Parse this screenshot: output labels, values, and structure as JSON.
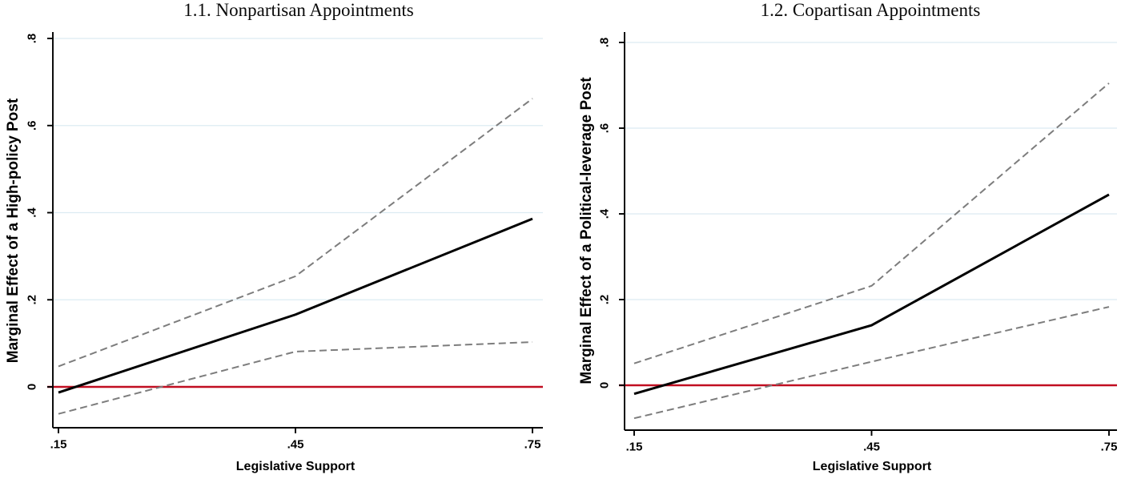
{
  "figure": {
    "description": "Two-panel marginal effects plot with 95% confidence intervals and a zero reference line"
  },
  "styles": {
    "background": "#ffffff",
    "gridline_color": "#dcebf2",
    "axis_color": "#000000",
    "ci_dash_color": "#7d7d7d",
    "zero_line_color": "#c10e21",
    "effect_line_color": "#000000"
  },
  "chart_data": [
    {
      "type": "line",
      "title": "1.1. Nonpartisan Appointments",
      "xlabel": "Legislative Support",
      "ylabel": "Marginal Effect of a High-policy Post",
      "x": [
        0.15,
        0.45,
        0.75
      ],
      "series": [
        {
          "name": "marginal-effect",
          "style": "solid",
          "color": "#000000",
          "width": 3,
          "values": [
            -0.013,
            0.166,
            0.386
          ]
        },
        {
          "name": "upper-95-ci",
          "style": "dashed",
          "color": "#7d7d7d",
          "width": 2,
          "values": [
            0.047,
            0.254,
            0.662
          ]
        },
        {
          "name": "lower-95-ci",
          "style": "dashed",
          "color": "#7d7d7d",
          "width": 2,
          "values": [
            -0.062,
            0.081,
            0.103
          ]
        }
      ],
      "zero_line_y": 0,
      "xticks": {
        "values": [
          0.15,
          0.45,
          0.75
        ],
        "labels": [
          ".15",
          ".45",
          ".75"
        ]
      },
      "yticks": {
        "values": [
          0,
          0.2,
          0.4,
          0.6,
          0.8
        ],
        "labels": [
          "0",
          ".2",
          ".4",
          ".6",
          ".8"
        ]
      },
      "xlim": [
        0.143,
        0.758
      ],
      "ylim": [
        -0.095,
        0.815
      ],
      "grid": true,
      "legend": "none"
    },
    {
      "type": "line",
      "title": "1.2. Copartisan Appointments",
      "xlabel": "Legislative Support",
      "ylabel": "Marginal Effect of a Political-leverage Post",
      "x": [
        0.15,
        0.45,
        0.75
      ],
      "series": [
        {
          "name": "marginal-effect",
          "style": "solid",
          "color": "#000000",
          "width": 3,
          "values": [
            -0.02,
            0.14,
            0.445
          ]
        },
        {
          "name": "upper-95-ci",
          "style": "dashed",
          "color": "#7d7d7d",
          "width": 2,
          "values": [
            0.051,
            0.232,
            0.705
          ]
        },
        {
          "name": "lower-95-ci",
          "style": "dashed",
          "color": "#7d7d7d",
          "width": 2,
          "values": [
            -0.077,
            0.055,
            0.183
          ]
        }
      ],
      "zero_line_y": 0,
      "xticks": {
        "values": [
          0.15,
          0.45,
          0.75
        ],
        "labels": [
          ".15",
          ".45",
          ".75"
        ]
      },
      "yticks": {
        "values": [
          0,
          0.2,
          0.4,
          0.6,
          0.8
        ],
        "labels": [
          "0",
          ".2",
          ".4",
          ".6",
          ".8"
        ]
      },
      "xlim": [
        0.143,
        0.758
      ],
      "ylim": [
        -0.095,
        0.815
      ],
      "grid": true,
      "legend": "none"
    }
  ]
}
